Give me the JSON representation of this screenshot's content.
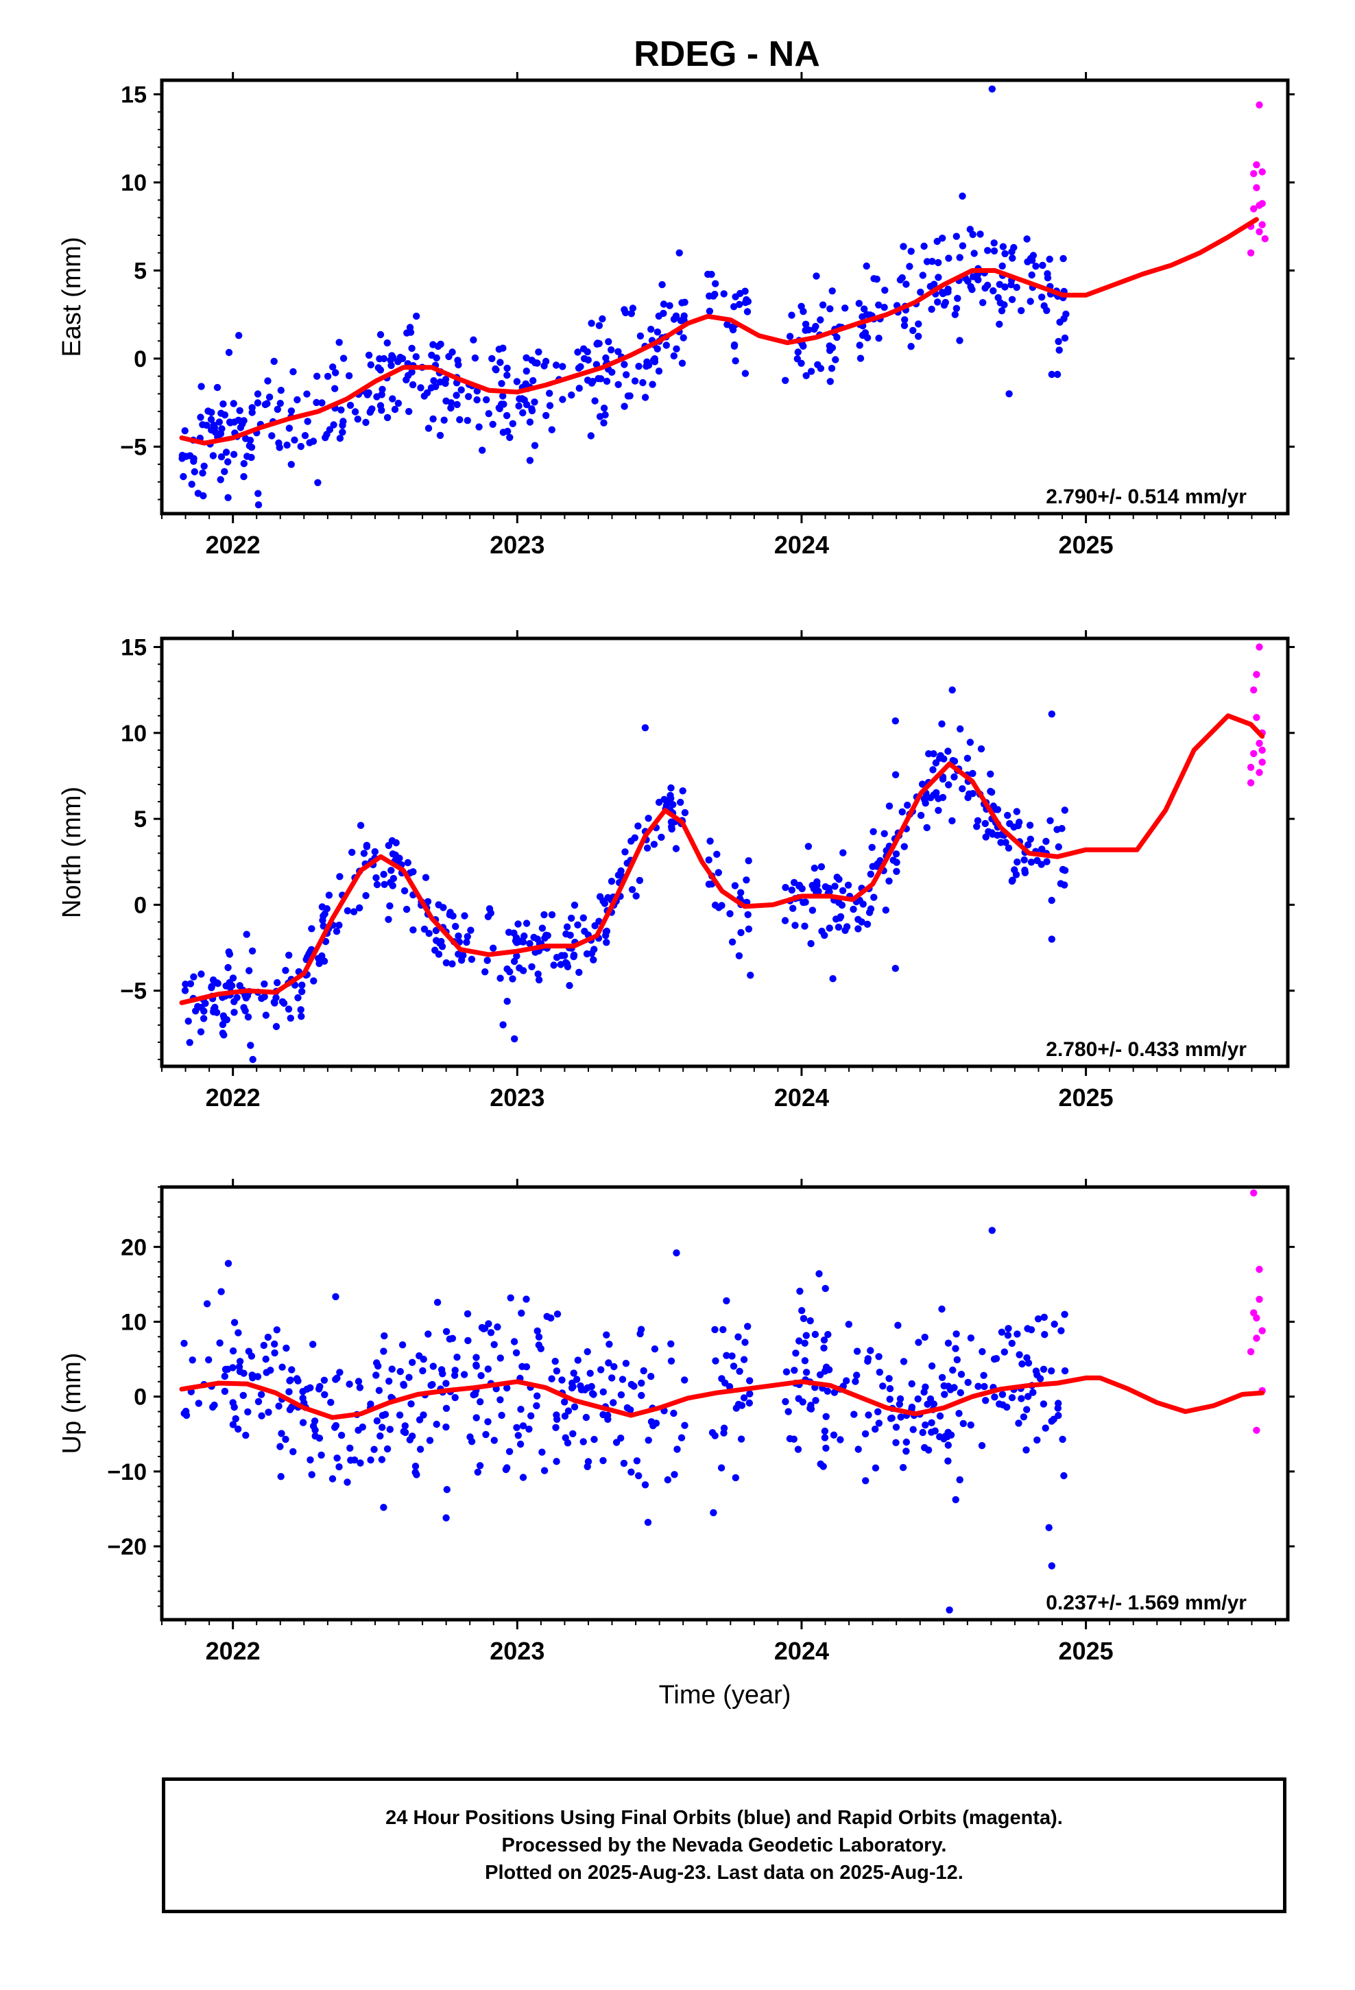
{
  "title": "RDEG - NA",
  "xlabel": "Time (year)",
  "colors": {
    "final": "#0000ff",
    "rapid": "#ff00ff",
    "model": "#ff0000",
    "frame": "#000000"
  },
  "footer": {
    "line1": "24 Hour Positions Using Final Orbits (blue) and Rapid Orbits (magenta).",
    "line2": "Processed by the Nevada Geodetic Laboratory.",
    "line3": "Plotted on 2025-Aug-23. Last data on 2025-Aug-12."
  },
  "chart_data": [
    {
      "type": "scatter",
      "ylabel": "East (mm)",
      "rate": "2.790+/- 0.514 mm/yr",
      "xlim": [
        2021.75,
        2025.71
      ],
      "ylim": [
        -8.8,
        15.8
      ],
      "yticks": [
        -5,
        0,
        5,
        10,
        15
      ],
      "xticks": [
        2022,
        2023,
        2024,
        2025
      ],
      "model": [
        [
          2021.82,
          -4.5
        ],
        [
          2021.9,
          -4.8
        ],
        [
          2022.0,
          -4.5
        ],
        [
          2022.1,
          -3.9
        ],
        [
          2022.2,
          -3.4
        ],
        [
          2022.3,
          -3.0
        ],
        [
          2022.4,
          -2.3
        ],
        [
          2022.5,
          -1.3
        ],
        [
          2022.6,
          -0.5
        ],
        [
          2022.7,
          -0.5
        ],
        [
          2022.8,
          -1.2
        ],
        [
          2022.9,
          -1.8
        ],
        [
          2023.0,
          -1.9
        ],
        [
          2023.1,
          -1.5
        ],
        [
          2023.2,
          -1.0
        ],
        [
          2023.3,
          -0.5
        ],
        [
          2023.4,
          0.2
        ],
        [
          2023.5,
          1.0
        ],
        [
          2023.6,
          2.0
        ],
        [
          2023.67,
          2.4
        ],
        [
          2023.75,
          2.2
        ],
        [
          2023.85,
          1.3
        ],
        [
          2023.95,
          0.9
        ],
        [
          2024.05,
          1.2
        ],
        [
          2024.2,
          2.0
        ],
        [
          2024.3,
          2.5
        ],
        [
          2024.4,
          3.2
        ],
        [
          2024.5,
          4.2
        ],
        [
          2024.6,
          5.0
        ],
        [
          2024.68,
          5.0
        ],
        [
          2024.8,
          4.3
        ],
        [
          2024.92,
          3.6
        ],
        [
          2025.0,
          3.6
        ],
        [
          2025.1,
          4.2
        ],
        [
          2025.2,
          4.8
        ],
        [
          2025.3,
          5.3
        ],
        [
          2025.4,
          6.0
        ],
        [
          2025.5,
          6.9
        ],
        [
          2025.6,
          7.9
        ]
      ],
      "final_series": {
        "segments": [
          [
            2021.82,
            2023.59
          ],
          [
            2023.67,
            2023.82
          ],
          [
            2023.94,
            2024.93
          ]
        ],
        "model_offset": 0,
        "noise": 1.6,
        "count": 560,
        "seed": 11,
        "outliers": [
          [
            2024.67,
            15.3
          ],
          [
            2022.09,
            -8.3
          ],
          [
            2023.57,
            6.0
          ],
          [
            2024.73,
            -2.0
          ],
          [
            2024.88,
            -0.9
          ],
          [
            2024.9,
            -0.9
          ]
        ]
      },
      "rapid": [
        [
          2025.58,
          6.0
        ],
        [
          2025.58,
          7.5
        ],
        [
          2025.59,
          8.5
        ],
        [
          2025.59,
          10.5
        ],
        [
          2025.6,
          11.0
        ],
        [
          2025.6,
          9.7
        ],
        [
          2025.61,
          7.2
        ],
        [
          2025.61,
          8.7
        ],
        [
          2025.61,
          14.4
        ],
        [
          2025.62,
          10.6
        ],
        [
          2025.62,
          8.8
        ],
        [
          2025.62,
          7.6
        ],
        [
          2025.63,
          6.8
        ]
      ]
    },
    {
      "type": "scatter",
      "ylabel": "North (mm)",
      "rate": "2.780+/- 0.433 mm/yr",
      "xlim": [
        2021.75,
        2025.71
      ],
      "ylim": [
        -9.4,
        15.5
      ],
      "yticks": [
        -5,
        0,
        5,
        10,
        15
      ],
      "xticks": [
        2022,
        2023,
        2024,
        2025
      ],
      "model": [
        [
          2021.82,
          -5.7
        ],
        [
          2021.95,
          -5.2
        ],
        [
          2022.05,
          -5.0
        ],
        [
          2022.15,
          -5.1
        ],
        [
          2022.25,
          -4.0
        ],
        [
          2022.35,
          -0.8
        ],
        [
          2022.45,
          2.0
        ],
        [
          2022.52,
          2.8
        ],
        [
          2022.6,
          2.0
        ],
        [
          2022.7,
          -0.8
        ],
        [
          2022.8,
          -2.6
        ],
        [
          2022.9,
          -2.9
        ],
        [
          2023.0,
          -2.7
        ],
        [
          2023.1,
          -2.4
        ],
        [
          2023.2,
          -2.4
        ],
        [
          2023.28,
          -1.8
        ],
        [
          2023.35,
          0.5
        ],
        [
          2023.45,
          4.0
        ],
        [
          2023.52,
          5.5
        ],
        [
          2023.58,
          4.8
        ],
        [
          2023.65,
          2.5
        ],
        [
          2023.72,
          0.8
        ],
        [
          2023.8,
          -0.1
        ],
        [
          2023.9,
          0.0
        ],
        [
          2024.0,
          0.5
        ],
        [
          2024.1,
          0.5
        ],
        [
          2024.18,
          0.3
        ],
        [
          2024.25,
          1.2
        ],
        [
          2024.32,
          3.3
        ],
        [
          2024.42,
          6.5
        ],
        [
          2024.52,
          8.2
        ],
        [
          2024.6,
          7.2
        ],
        [
          2024.7,
          4.5
        ],
        [
          2024.8,
          3.0
        ],
        [
          2024.9,
          2.8
        ],
        [
          2025.0,
          3.2
        ],
        [
          2025.1,
          3.2
        ],
        [
          2025.18,
          3.2
        ],
        [
          2025.28,
          5.5
        ],
        [
          2025.38,
          9.0
        ],
        [
          2025.5,
          11.0
        ],
        [
          2025.58,
          10.5
        ],
        [
          2025.62,
          9.8
        ]
      ],
      "final_series": {
        "segments": [
          [
            2021.82,
            2023.59
          ],
          [
            2023.67,
            2023.82
          ],
          [
            2023.94,
            2024.93
          ]
        ],
        "model_offset": 0,
        "noise": 1.15,
        "count": 560,
        "seed": 23,
        "outliers": [
          [
            2023.45,
            10.3
          ],
          [
            2024.53,
            12.5
          ],
          [
            2022.07,
            -9.0
          ],
          [
            2022.99,
            -7.8
          ],
          [
            2024.88,
            11.1
          ],
          [
            2024.33,
            10.7
          ],
          [
            2024.33,
            -3.7
          ],
          [
            2024.11,
            -4.3
          ],
          [
            2024.88,
            -2.0
          ],
          [
            2023.82,
            -4.1
          ]
        ]
      },
      "rapid": [
        [
          2025.58,
          7.1
        ],
        [
          2025.58,
          8.0
        ],
        [
          2025.59,
          8.8
        ],
        [
          2025.59,
          12.5
        ],
        [
          2025.6,
          13.4
        ],
        [
          2025.6,
          10.9
        ],
        [
          2025.61,
          9.4
        ],
        [
          2025.61,
          7.7
        ],
        [
          2025.61,
          15.0
        ],
        [
          2025.62,
          9.0
        ],
        [
          2025.62,
          8.3
        ],
        [
          2025.62,
          10.0
        ]
      ]
    },
    {
      "type": "scatter",
      "ylabel": "Up (mm)",
      "rate": "0.237+/- 1.569 mm/yr",
      "xlabel": "Time (year)",
      "xlim": [
        2021.75,
        2025.71
      ],
      "ylim": [
        -29.8,
        28.0
      ],
      "yticks": [
        -20,
        -10,
        0,
        10,
        20
      ],
      "xticks": [
        2022,
        2023,
        2024,
        2025
      ],
      "model": [
        [
          2021.82,
          1.0
        ],
        [
          2021.95,
          1.8
        ],
        [
          2022.05,
          1.7
        ],
        [
          2022.15,
          0.5
        ],
        [
          2022.25,
          -1.5
        ],
        [
          2022.35,
          -2.8
        ],
        [
          2022.45,
          -2.3
        ],
        [
          2022.55,
          -0.8
        ],
        [
          2022.65,
          0.3
        ],
        [
          2022.75,
          0.8
        ],
        [
          2022.85,
          1.2
        ],
        [
          2023.0,
          2.0
        ],
        [
          2023.1,
          1.2
        ],
        [
          2023.2,
          -0.5
        ],
        [
          2023.3,
          -1.5
        ],
        [
          2023.4,
          -2.5
        ],
        [
          2023.5,
          -1.5
        ],
        [
          2023.6,
          -0.2
        ],
        [
          2023.7,
          0.5
        ],
        [
          2023.8,
          1.0
        ],
        [
          2023.9,
          1.5
        ],
        [
          2024.0,
          2.0
        ],
        [
          2024.1,
          1.5
        ],
        [
          2024.2,
          0.0
        ],
        [
          2024.3,
          -1.5
        ],
        [
          2024.4,
          -2.3
        ],
        [
          2024.5,
          -1.5
        ],
        [
          2024.6,
          0.0
        ],
        [
          2024.7,
          1.0
        ],
        [
          2024.8,
          1.5
        ],
        [
          2024.9,
          1.8
        ],
        [
          2025.0,
          2.5
        ],
        [
          2025.05,
          2.5
        ],
        [
          2025.15,
          1.0
        ],
        [
          2025.25,
          -0.8
        ],
        [
          2025.35,
          -2.0
        ],
        [
          2025.45,
          -1.2
        ],
        [
          2025.55,
          0.3
        ],
        [
          2025.62,
          0.5
        ]
      ],
      "final_series": {
        "segments": [
          [
            2021.82,
            2023.59
          ],
          [
            2023.67,
            2023.82
          ],
          [
            2023.94,
            2024.93
          ]
        ],
        "model_offset": 0,
        "noise": 5.3,
        "count": 560,
        "seed": 37,
        "outliers": [
          [
            2024.52,
            -28.5
          ],
          [
            2024.88,
            -22.6
          ],
          [
            2024.87,
            -17.5
          ],
          [
            2023.56,
            19.2
          ],
          [
            2024.67,
            22.2
          ],
          [
            2023.46,
            -16.8
          ],
          [
            2022.75,
            -16.2
          ],
          [
            2022.53,
            -14.8
          ],
          [
            2023.69,
            -15.5
          ]
        ]
      },
      "rapid": [
        [
          2025.58,
          6.0
        ],
        [
          2025.59,
          27.2
        ],
        [
          2025.59,
          11.2
        ],
        [
          2025.6,
          10.5
        ],
        [
          2025.6,
          7.8
        ],
        [
          2025.6,
          -4.5
        ],
        [
          2025.61,
          17.0
        ],
        [
          2025.61,
          13.0
        ],
        [
          2025.62,
          8.8
        ],
        [
          2025.62,
          0.8
        ]
      ]
    }
  ]
}
